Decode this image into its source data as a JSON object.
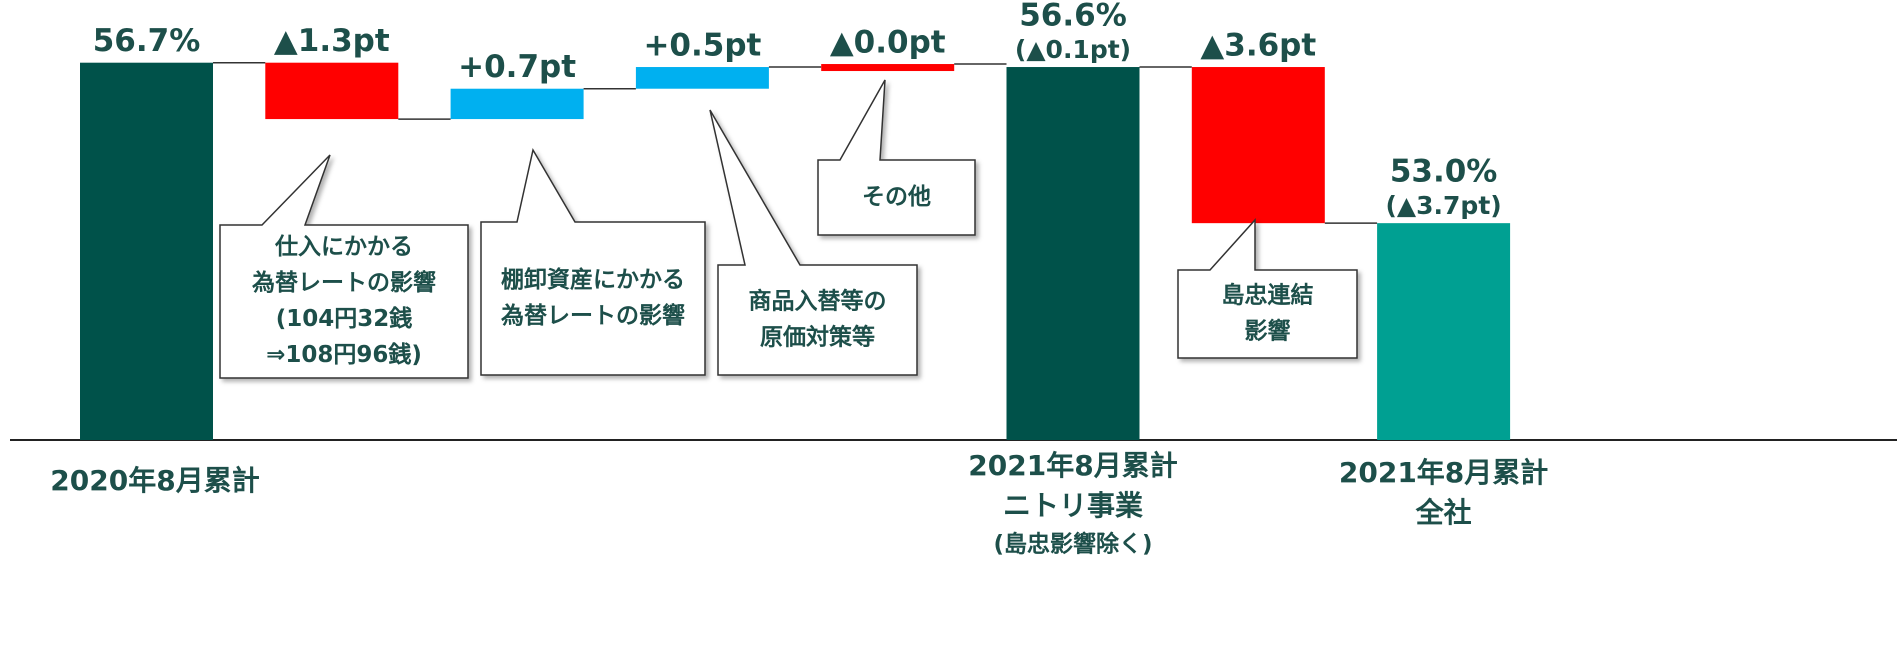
{
  "chart_data": {
    "type": "waterfall",
    "categories": [
      [
        "2020年8月累計"
      ],
      null,
      null,
      null,
      null,
      [
        "2021年8月累計",
        "ニトリ事業",
        "(島忠影響除く)"
      ],
      null,
      [
        "2021年8月累計",
        "全社"
      ]
    ],
    "measures": [
      "absolute",
      "relative",
      "relative",
      "relative",
      "relative",
      "total",
      "relative",
      "total"
    ],
    "values": [
      56.7,
      -1.3,
      0.7,
      0.5,
      0.0,
      56.6,
      -3.6,
      53.0
    ],
    "value_labels": [
      "56.7%",
      "▲1.3pt",
      "+0.7pt",
      "+0.5pt",
      "▲0.0pt",
      "56.6%",
      "▲3.6pt",
      "53.0%"
    ],
    "change_labels": [
      null,
      null,
      null,
      null,
      null,
      "(▲0.1pt)",
      null,
      "(▲3.7pt)"
    ],
    "colors": [
      "#00524a",
      "#ff0000",
      "#00b0f0",
      "#00b0f0",
      "#ff0000",
      "#00524a",
      "#ff0000",
      "#00a092"
    ],
    "ylim": [
      48,
      57.5
    ],
    "annotations": [
      [
        "仕入にかかる",
        "為替レートの影響",
        "(104円32銭",
        "⇒108円96銭)"
      ],
      [
        "棚卸資産にかかる",
        "為替レートの影響"
      ],
      [
        "商品入替等の",
        "原価対策等"
      ],
      [
        "その他"
      ],
      [
        "島忠連結",
        "影響"
      ]
    ]
  }
}
